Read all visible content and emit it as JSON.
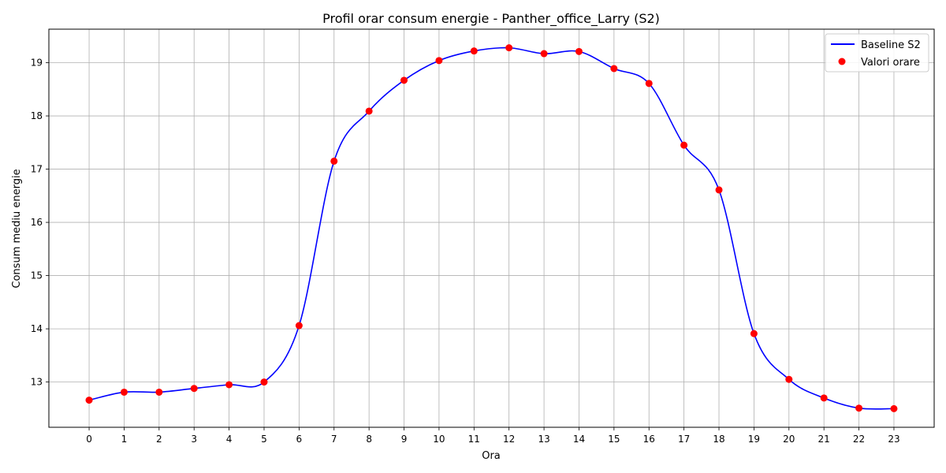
{
  "chart_data": {
    "type": "line",
    "title": "Profil orar consum energie - Panther_office_Larry (S2)",
    "xlabel": "Ora",
    "ylabel": "Consum mediu energie",
    "x": [
      0,
      1,
      2,
      3,
      4,
      5,
      6,
      7,
      8,
      9,
      10,
      11,
      12,
      13,
      14,
      15,
      16,
      17,
      18,
      19,
      20,
      21,
      22,
      23
    ],
    "x_tick_labels": [
      "0",
      "1",
      "2",
      "3",
      "4",
      "5",
      "6",
      "7",
      "8",
      "9",
      "10",
      "11",
      "12",
      "13",
      "14",
      "15",
      "16",
      "17",
      "18",
      "19",
      "20",
      "21",
      "22",
      "23"
    ],
    "y_ticks": [
      13,
      14,
      15,
      16,
      17,
      18,
      19
    ],
    "xlim": [
      -1.15,
      24.15
    ],
    "ylim": [
      12.15,
      19.63
    ],
    "grid": true,
    "legend_position": "top-right",
    "series": [
      {
        "name": "Baseline S2",
        "kind": "smooth-line",
        "color": "#0000ff",
        "values": [
          12.66,
          12.81,
          12.81,
          12.88,
          12.95,
          13.0,
          14.06,
          17.15,
          18.09,
          18.67,
          19.04,
          19.22,
          19.28,
          19.17,
          19.21,
          18.89,
          18.61,
          17.45,
          16.61,
          13.91,
          13.05,
          12.7,
          12.51,
          12.5
        ]
      },
      {
        "name": "Valori orare",
        "kind": "scatter",
        "color": "#ff0000",
        "values": [
          12.66,
          12.81,
          12.81,
          12.88,
          12.95,
          13.0,
          14.06,
          17.15,
          18.09,
          18.67,
          19.04,
          19.22,
          19.28,
          19.17,
          19.21,
          18.89,
          18.61,
          17.45,
          16.61,
          13.91,
          13.05,
          12.7,
          12.51,
          12.5
        ]
      }
    ]
  }
}
